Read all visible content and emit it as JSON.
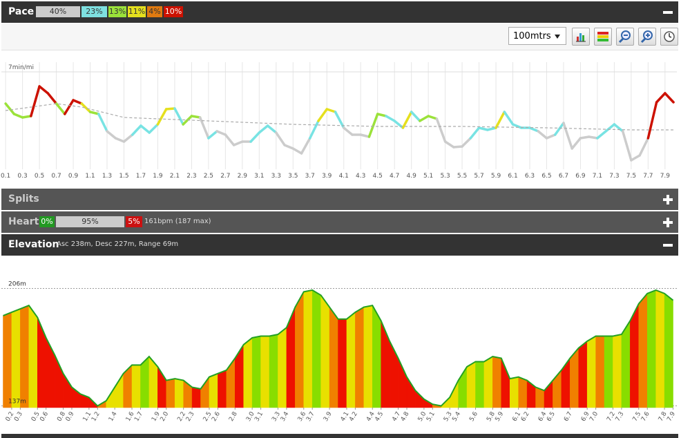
{
  "pace_panel": {
    "title": "Pace",
    "zones": [
      "40%",
      "23%",
      "13%",
      "11%",
      "4%",
      "10%"
    ],
    "distance_option": "100mtrs"
  },
  "splits_panel": {
    "title": "Splits"
  },
  "heart_panel": {
    "title": "Heart",
    "zones": [
      "0%",
      "95%",
      "5%"
    ],
    "summary": "161bpm (187 max)"
  },
  "elevation_panel": {
    "title": "Elevation",
    "summary": "Asc 238m, Desc 227m, Range 69m"
  },
  "chart_data": [
    {
      "type": "line",
      "x": [
        0.1,
        0.2,
        0.3,
        0.4,
        0.5,
        0.6,
        0.7,
        0.8,
        0.9,
        1.0,
        1.1,
        1.2,
        1.3,
        1.4,
        1.5,
        1.6,
        1.7,
        1.8,
        1.9,
        2.0,
        2.1,
        2.2,
        2.3,
        2.4,
        2.5,
        2.6,
        2.7,
        2.8,
        2.9,
        3.0,
        3.1,
        3.2,
        3.3,
        3.4,
        3.5,
        3.6,
        3.7,
        3.8,
        3.9,
        4.0,
        4.1,
        4.2,
        4.3,
        4.4,
        4.5,
        4.6,
        4.7,
        4.8,
        4.9,
        5.0,
        5.1,
        5.2,
        5.3,
        5.4,
        5.5,
        5.6,
        5.7,
        5.8,
        5.9,
        6.0,
        6.1,
        6.2,
        6.3,
        6.4,
        6.5,
        6.6,
        6.7,
        6.8,
        6.9,
        7.0,
        7.1,
        7.2,
        7.3,
        7.4,
        7.5,
        7.6,
        7.7,
        7.8,
        7.9,
        8.0
      ],
      "series": [
        {
          "values": [
            7.46,
            7.61,
            7.66,
            7.64,
            7.21,
            7.31,
            7.46,
            7.61,
            7.41,
            7.46,
            7.58,
            7.61,
            7.86,
            7.96,
            8.01,
            7.91,
            7.78,
            7.88,
            7.76,
            7.54,
            7.53,
            7.76,
            7.64,
            7.66,
            7.96,
            7.86,
            7.91,
            8.06,
            8.01,
            8.01,
            7.88,
            7.78,
            7.88,
            8.06,
            8.11,
            8.18,
            7.96,
            7.71,
            7.54,
            7.58,
            7.81,
            7.91,
            7.91,
            7.94,
            7.61,
            7.64,
            7.71,
            7.81,
            7.58,
            7.71,
            7.64,
            7.68,
            8.01,
            8.09,
            8.08,
            7.96,
            7.81,
            7.84,
            7.81,
            7.58,
            7.76,
            7.81,
            7.81,
            7.86,
            7.96,
            7.91,
            7.74,
            8.11,
            7.96,
            7.94,
            7.96,
            7.86,
            7.76,
            7.86,
            8.28,
            8.21,
            7.96,
            7.44,
            7.31,
            7.44
          ],
          "colors": [
            "#cc1100",
            "#9be23a",
            "#9be23a",
            "#9be23a",
            "#cc1100",
            "#cc1100",
            "#cc1100",
            "#9be23a",
            "#cc1100",
            "#cc1100",
            "#e5e01e",
            "#9be23a",
            "#78e3e3",
            "#cccccc",
            "#cccccc",
            "#cccccc",
            "#78e3e3",
            "#78e3e3",
            "#78e3e3",
            "#e5e01e",
            "#e5e01e",
            "#78e3e3",
            "#9be23a",
            "#9be23a",
            "#cccccc",
            "#78e3e3",
            "#cccccc",
            "#cccccc",
            "#cccccc",
            "#cccccc",
            "#78e3e3",
            "#78e3e3",
            "#78e3e3",
            "#cccccc",
            "#cccccc",
            "#cccccc",
            "#cccccc",
            "#78e3e3",
            "#e5e01e",
            "#e5e01e",
            "#78e3e3",
            "#cccccc",
            "#cccccc",
            "#cccccc",
            "#9be23a",
            "#9be23a",
            "#78e3e3",
            "#78e3e3",
            "#e5e01e",
            "#78e3e3",
            "#9be23a",
            "#9be23a",
            "#cccccc",
            "#cccccc",
            "#cccccc",
            "#cccccc",
            "#78e3e3",
            "#78e3e3",
            "#78e3e3",
            "#e5e01e",
            "#78e3e3",
            "#78e3e3",
            "#78e3e3",
            "#78e3e3",
            "#cccccc",
            "#cccccc",
            "#78e3e3",
            "#cccccc",
            "#cccccc",
            "#cccccc",
            "#cccccc",
            "#78e3e3",
            "#78e3e3",
            "#78e3e3",
            "#cccccc",
            "#cccccc",
            "#cccccc",
            "#cc1100",
            "#cc1100",
            "#cc1100"
          ]
        },
        {
          "x": [
            0.1,
            0.7,
            1.0,
            1.5,
            2.5,
            3.5,
            4.5,
            5.5,
            6.5,
            7.5,
            8.0
          ],
          "values": [
            7.56,
            7.46,
            7.51,
            7.66,
            7.71,
            7.76,
            7.79,
            7.79,
            7.81,
            7.84,
            7.84
          ],
          "color": "#aaaaaa",
          "dashed": true
        }
      ],
      "xlim": [
        0.05,
        8.04
      ],
      "xticks": [
        0.1,
        0.3,
        0.5,
        0.7,
        0.9,
        1.1,
        1.3,
        1.5,
        1.7,
        1.9,
        2.1,
        2.3,
        2.5,
        2.7,
        2.9,
        3.1,
        3.3,
        3.5,
        3.7,
        3.9,
        4.1,
        4.3,
        4.5,
        4.7,
        4.9,
        5.1,
        5.3,
        5.5,
        5.7,
        5.9,
        6.1,
        6.3,
        6.5,
        6.7,
        6.9,
        7.1,
        7.3,
        7.5,
        7.7,
        7.9
      ],
      "ylim": [
        8.41,
        6.86
      ],
      "yticks": [
        {
          "value": 7,
          "label": "7min/mi"
        }
      ],
      "grid": true
    },
    {
      "type": "area",
      "x": [
        0.1,
        0.2,
        0.3,
        0.4,
        0.5,
        0.6,
        0.7,
        0.8,
        0.9,
        1.0,
        1.1,
        1.2,
        1.3,
        1.4,
        1.5,
        1.6,
        1.7,
        1.8,
        1.9,
        2.0,
        2.1,
        2.2,
        2.3,
        2.4,
        2.5,
        2.6,
        2.7,
        2.8,
        2.9,
        3.0,
        3.1,
        3.2,
        3.3,
        3.4,
        3.5,
        3.6,
        3.7,
        3.8,
        3.9,
        4.0,
        4.1,
        4.2,
        4.3,
        4.4,
        4.5,
        4.6,
        4.7,
        4.8,
        4.9,
        5.0,
        5.1,
        5.2,
        5.3,
        5.4,
        5.5,
        5.6,
        5.7,
        5.8,
        5.9,
        6.0,
        6.1,
        6.2,
        6.3,
        6.4,
        6.5,
        6.6,
        6.7,
        6.8,
        6.9,
        7.0,
        7.1,
        7.2,
        7.3,
        7.4,
        7.5,
        7.6,
        7.7,
        7.8,
        7.9
      ],
      "values": [
        190,
        192,
        194,
        196,
        189,
        177,
        167,
        156,
        148,
        144,
        142,
        137,
        140,
        148,
        156,
        161,
        161,
        166,
        160,
        152,
        153,
        152,
        148,
        147,
        154,
        156,
        158,
        165,
        173,
        177,
        178,
        178,
        179,
        183,
        195,
        204,
        205,
        202,
        195,
        188,
        188,
        192,
        195,
        196,
        187,
        175,
        165,
        154,
        146,
        141,
        138,
        137,
        142,
        152,
        160,
        163,
        163,
        166,
        165,
        153,
        154,
        152,
        148,
        146,
        152,
        158,
        165,
        171,
        175,
        178,
        178,
        178,
        179,
        187,
        197,
        203,
        205,
        203,
        199
      ],
      "colors": [
        "#f08000",
        "#e8e000",
        "#f08000",
        "#e8e000",
        "#ee1100",
        "#ee1100",
        "#ee1100",
        "#ee1100",
        "#ee1100",
        "#ee1100",
        "#ee1100",
        "#f08000",
        "#e8e000",
        "#e8e000",
        "#f08000",
        "#e8e000",
        "#88dd00",
        "#e8e000",
        "#ee1100",
        "#f08000",
        "#e8e000",
        "#f08000",
        "#ee1100",
        "#f08000",
        "#e8e000",
        "#ee1100",
        "#f08000",
        "#ee1100",
        "#e8e000",
        "#88dd00",
        "#e8e000",
        "#88dd00",
        "#e8e000",
        "#ee1100",
        "#f08000",
        "#e8e000",
        "#88dd00",
        "#e8e000",
        "#f08000",
        "#ee1100",
        "#e8e000",
        "#f08000",
        "#e8e000",
        "#88dd00",
        "#ee1100",
        "#ee1100",
        "#ee1100",
        "#ee1100",
        "#ee1100",
        "#ee1100",
        "#f08000",
        "#e8e000",
        "#e8e000",
        "#88dd00",
        "#e8e000",
        "#88dd00",
        "#e8e000",
        "#f08000",
        "#ee1100",
        "#e8e000",
        "#f08000",
        "#ee1100",
        "#f08000",
        "#ee1100",
        "#f08000",
        "#ee1100",
        "#f08000",
        "#ee1100",
        "#e8e000",
        "#f08000",
        "#88dd00",
        "#e8e000",
        "#88dd00",
        "#ee1100",
        "#f08000",
        "#88dd00",
        "#e8e000",
        "#88dd00",
        "#f08000"
      ],
      "line_color": "#22a022",
      "xlim": [
        0.08,
        7.96
      ],
      "xticks": [
        0.2,
        0.3,
        0.5,
        0.6,
        0.8,
        0.9,
        1.1,
        1.2,
        1.4,
        1.6,
        1.7,
        1.9,
        {
          "value": 2,
          "label": "2.0"
        },
        2.2,
        2.3,
        2.5,
        2.6,
        2.8,
        {
          "value": 3,
          "label": "3.0"
        },
        3.1,
        3.3,
        3.4,
        3.6,
        3.7,
        3.9,
        4.1,
        4.2,
        4.4,
        4.5,
        4.7,
        4.8,
        {
          "value": 5,
          "label": "5.0"
        },
        5.1,
        5.3,
        5.4,
        5.6,
        5.8,
        5.9,
        6.1,
        6.2,
        6.4,
        6.5,
        6.7,
        6.9,
        {
          "value": 7,
          "label": "7.0"
        },
        7.2,
        7.3,
        7.5,
        7.6,
        7.8,
        7.9
      ],
      "ylim": [
        136,
        207
      ],
      "yticks": [
        {
          "value": 206,
          "label": "206m"
        },
        {
          "value": 137,
          "label": "137m"
        }
      ]
    }
  ]
}
